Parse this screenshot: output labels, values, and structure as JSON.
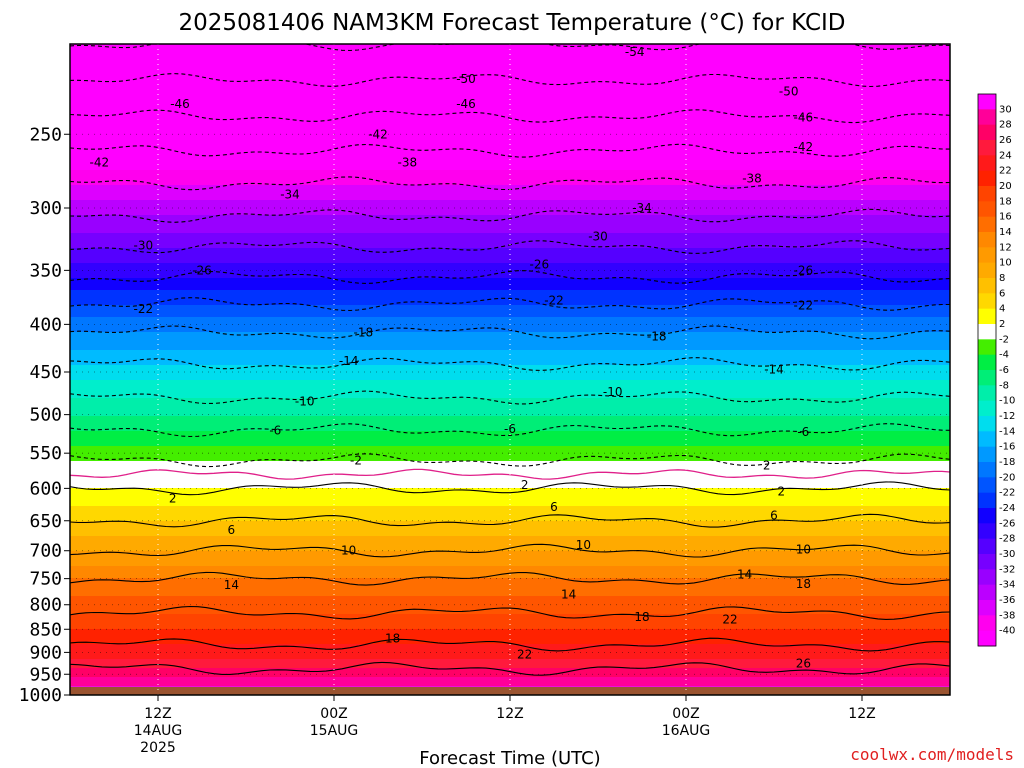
{
  "chart_data": {
    "type": "heatmap",
    "title": "2025081406 NAM3KM Forecast Temperature (°C) for KCID",
    "xlabel": "Forecast Time (UTC)",
    "credit": "coolwx.com/models",
    "y_scale": "log",
    "ylim": [
      1000,
      200
    ],
    "y_ticks": [
      250,
      300,
      350,
      400,
      450,
      500,
      550,
      600,
      650,
      700,
      750,
      800,
      850,
      900,
      950,
      1000
    ],
    "x_range_hours": [
      0,
      60
    ],
    "x_ticks": [
      {
        "hour": 6,
        "lines": [
          "12Z",
          "14AUG",
          "2025"
        ]
      },
      {
        "hour": 18,
        "lines": [
          "00Z",
          "15AUG"
        ]
      },
      {
        "hour": 30,
        "lines": [
          "12Z"
        ]
      },
      {
        "hour": 42,
        "lines": [
          "00Z",
          "16AUG"
        ]
      },
      {
        "hour": 54,
        "lines": [
          "12Z"
        ]
      }
    ],
    "grid": true,
    "ground_pressure": 980,
    "ground_color": "#9a5430",
    "temperature_profile": {
      "pressure": [
        200,
        250,
        300,
        350,
        400,
        450,
        500,
        550,
        600,
        650,
        700,
        750,
        800,
        850,
        900,
        950,
        980
      ],
      "temperature": [
        -54,
        -44,
        -35,
        -27,
        -19,
        -13,
        -8,
        -3,
        2,
        6,
        10,
        14,
        17,
        20,
        23,
        27,
        30
      ]
    },
    "contour_labels": [
      {
        "hour": 38.5,
        "p": 204,
        "value": -54
      },
      {
        "hour": 27,
        "p": 218,
        "value": -50
      },
      {
        "hour": 49,
        "p": 225,
        "value": -50
      },
      {
        "hour": 7.5,
        "p": 232,
        "value": -46
      },
      {
        "hour": 27,
        "p": 232,
        "value": -46
      },
      {
        "hour": 50,
        "p": 240,
        "value": -46
      },
      {
        "hour": 2,
        "p": 268,
        "value": -42
      },
      {
        "hour": 21,
        "p": 250,
        "value": -42
      },
      {
        "hour": 50,
        "p": 258,
        "value": -42
      },
      {
        "hour": 23,
        "p": 268,
        "value": -38
      },
      {
        "hour": 46.5,
        "p": 279,
        "value": -38
      },
      {
        "hour": 15,
        "p": 290,
        "value": -34
      },
      {
        "hour": 39,
        "p": 300,
        "value": -34
      },
      {
        "hour": 5,
        "p": 329,
        "value": -30
      },
      {
        "hour": 36,
        "p": 322,
        "value": -30
      },
      {
        "hour": 9,
        "p": 350,
        "value": -26
      },
      {
        "hour": 32,
        "p": 345,
        "value": -26
      },
      {
        "hour": 50,
        "p": 350,
        "value": -26
      },
      {
        "hour": 5,
        "p": 385,
        "value": -22
      },
      {
        "hour": 33,
        "p": 377,
        "value": -22
      },
      {
        "hour": 50,
        "p": 382,
        "value": -22
      },
      {
        "hour": 20,
        "p": 408,
        "value": -18
      },
      {
        "hour": 40,
        "p": 412,
        "value": -18
      },
      {
        "hour": 19,
        "p": 438,
        "value": -14
      },
      {
        "hour": 48,
        "p": 447,
        "value": -14
      },
      {
        "hour": 16,
        "p": 484,
        "value": -10
      },
      {
        "hour": 37,
        "p": 473,
        "value": -10
      },
      {
        "hour": 14,
        "p": 520,
        "value": -6
      },
      {
        "hour": 30,
        "p": 518,
        "value": -6
      },
      {
        "hour": 50,
        "p": 522,
        "value": -6
      },
      {
        "hour": 19.5,
        "p": 560,
        "value": -2
      },
      {
        "hour": 47.5,
        "p": 567,
        "value": 2
      },
      {
        "hour": 31,
        "p": 595,
        "value": 2
      },
      {
        "hour": 7,
        "p": 615,
        "value": 2
      },
      {
        "hour": 48.5,
        "p": 605,
        "value": 2
      },
      {
        "hour": 33,
        "p": 628,
        "value": 6
      },
      {
        "hour": 11,
        "p": 665,
        "value": 6
      },
      {
        "hour": 48,
        "p": 642,
        "value": 6
      },
      {
        "hour": 19,
        "p": 700,
        "value": 10
      },
      {
        "hour": 35,
        "p": 690,
        "value": 10
      },
      {
        "hour": 50,
        "p": 698,
        "value": 10
      },
      {
        "hour": 11,
        "p": 762,
        "value": 14
      },
      {
        "hour": 34,
        "p": 780,
        "value": 14
      },
      {
        "hour": 46,
        "p": 742,
        "value": 14
      },
      {
        "hour": 22,
        "p": 870,
        "value": 18
      },
      {
        "hour": 39,
        "p": 825,
        "value": 18
      },
      {
        "hour": 50,
        "p": 760,
        "value": 18
      },
      {
        "hour": 31,
        "p": 905,
        "value": 22
      },
      {
        "hour": 45,
        "p": 830,
        "value": 22
      },
      {
        "hour": 50,
        "p": 925,
        "value": 26
      }
    ],
    "colorbar": {
      "levels": [
        "30",
        "28",
        "26",
        "24",
        "22",
        "20",
        "18",
        "16",
        "14",
        "12",
        "10",
        "8",
        "6",
        "4",
        "2",
        "-2",
        "-4",
        "-6",
        "-8",
        "-10",
        "-12",
        "-14",
        "-16",
        "-18",
        "-20",
        "-22",
        "-24",
        "-26",
        "-28",
        "-30",
        "-32",
        "-34",
        "-36",
        "-38",
        "-40"
      ],
      "colors": [
        "#ff00ff",
        "#ff0099",
        "#ff0066",
        "#ff1a3d",
        "#ff1a1a",
        "#ff2200",
        "#ff4400",
        "#ff5500",
        "#ff6e00",
        "#ff8800",
        "#ff9a00",
        "#ffaa00",
        "#ffc000",
        "#ffd800",
        "#ffff00",
        "#ffffff",
        "#44ee00",
        "#00ee44",
        "#00ee77",
        "#00eeaa",
        "#00eecc",
        "#00ddee",
        "#00bbff",
        "#0099ff",
        "#0077ff",
        "#0055ff",
        "#0033ff",
        "#1100ff",
        "#3300ff",
        "#5500ff",
        "#7700ff",
        "#9900ff",
        "#bb00ff",
        "#dd00ff",
        "#ff00ee",
        "#ff00ff"
      ]
    }
  }
}
